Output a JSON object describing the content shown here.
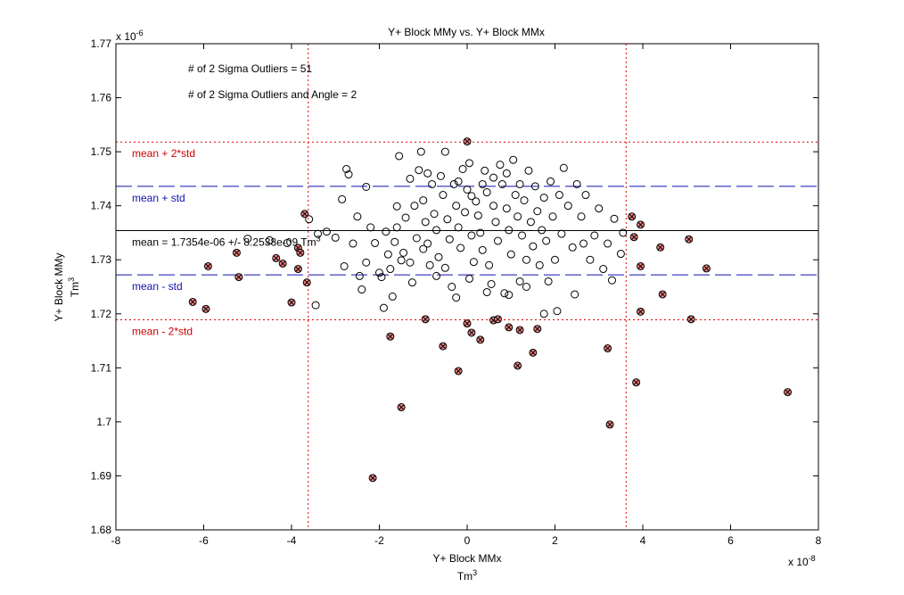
{
  "chart_data": {
    "type": "scatter",
    "title": "Y+ Block MMy vs. Y+ Block MMx",
    "xlabel": "Y+ Block MMx",
    "xlabel_unit": "Tm",
    "xlabel_unit_exp": "3",
    "ylabel": "Y+ Block MMy",
    "ylabel_unit": "Tm",
    "ylabel_unit_exp": "3",
    "xlim": [
      -8,
      8
    ],
    "ylim": [
      1.68,
      1.77
    ],
    "x_multiplier": {
      "base": "x 10",
      "exp": "-8"
    },
    "y_multiplier": {
      "base": "x 10",
      "exp": "-6"
    },
    "x_ticks": [
      -8,
      -6,
      -4,
      -2,
      0,
      2,
      4,
      6,
      8
    ],
    "x_tick_labels": [
      "-8",
      "-6",
      "-4",
      "-2",
      "0",
      "2",
      "4",
      "6",
      "8"
    ],
    "y_ticks": [
      1.68,
      1.69,
      1.7,
      1.71,
      1.72,
      1.73,
      1.74,
      1.75,
      1.76,
      1.77
    ],
    "y_tick_labels": [
      "1.68",
      "1.69",
      "1.7",
      "1.71",
      "1.72",
      "1.73",
      "1.74",
      "1.75",
      "1.76",
      "1.77"
    ],
    "annotations": [
      "# of 2 Sigma Outliers = 51",
      "# of 2 Sigma Outliers and Angle = 2"
    ],
    "reference_lines": [
      {
        "axis": "y",
        "value": 1.7518,
        "style": "dotted",
        "color": "#e00000",
        "label": "mean + 2*std",
        "label_color": "#cc0000"
      },
      {
        "axis": "y",
        "value": 1.7436,
        "style": "dashed",
        "color": "#1010b0",
        "label": "mean + std",
        "label_color": "#1010b0"
      },
      {
        "axis": "y",
        "value": 1.7354,
        "style": "solid",
        "color": "#000000",
        "label": "mean = 1.7354e-06 +/- 8.2538e-09  Tm",
        "label_exp": "3",
        "label_color": "#000000"
      },
      {
        "axis": "y",
        "value": 1.7272,
        "style": "dashed",
        "color": "#1010b0",
        "label": "mean - std",
        "label_color": "#1010b0"
      },
      {
        "axis": "y",
        "value": 1.7189,
        "style": "dotted",
        "color": "#e00000",
        "label": "mean - 2*std",
        "label_color": "#cc0000"
      },
      {
        "axis": "x",
        "value": -3.62,
        "style": "dotted",
        "color": "#e00000"
      },
      {
        "axis": "x",
        "value": 3.62,
        "style": "dotted",
        "color": "#e00000"
      }
    ],
    "outlier_points": [
      [
        -6.25,
        1.7222
      ],
      [
        -5.95,
        1.7209
      ],
      [
        -5.9,
        1.7288
      ],
      [
        -5.25,
        1.7313
      ],
      [
        -5.2,
        1.7268
      ],
      [
        -4.35,
        1.7303
      ],
      [
        -4.2,
        1.7293
      ],
      [
        -4.0,
        1.7221
      ],
      [
        -3.85,
        1.7322
      ],
      [
        -3.85,
        1.7283
      ],
      [
        -3.8,
        1.7313
      ],
      [
        -3.7,
        1.7385
      ],
      [
        -3.65,
        1.7258
      ],
      [
        -2.15,
        1.6896
      ],
      [
        -1.75,
        1.7158
      ],
      [
        -1.5,
        1.7027
      ],
      [
        -0.95,
        1.719
      ],
      [
        -0.55,
        1.714
      ],
      [
        -0.2,
        1.7094
      ],
      [
        0.0,
        1.7519
      ],
      [
        0.0,
        1.7182
      ],
      [
        0.1,
        1.7165
      ],
      [
        0.3,
        1.7152
      ],
      [
        0.6,
        1.7188
      ],
      [
        0.7,
        1.719
      ],
      [
        0.95,
        1.7175
      ],
      [
        1.15,
        1.7104
      ],
      [
        1.2,
        1.717
      ],
      [
        1.5,
        1.7128
      ],
      [
        1.6,
        1.7172
      ],
      [
        3.2,
        1.7136
      ],
      [
        3.25,
        1.6995
      ],
      [
        3.75,
        1.738
      ],
      [
        3.8,
        1.7342
      ],
      [
        3.85,
        1.7073
      ],
      [
        3.95,
        1.7365
      ],
      [
        3.95,
        1.7288
      ],
      [
        3.95,
        1.7204
      ],
      [
        4.4,
        1.7323
      ],
      [
        4.45,
        1.7236
      ],
      [
        5.05,
        1.7338
      ],
      [
        5.1,
        1.719
      ],
      [
        5.45,
        1.7284
      ],
      [
        7.3,
        1.7055
      ]
    ],
    "inlier_points": [
      [
        -5.0,
        1.7339
      ],
      [
        -4.5,
        1.7336
      ],
      [
        -4.1,
        1.7331
      ],
      [
        -3.6,
        1.7375
      ],
      [
        -3.4,
        1.7348
      ],
      [
        -3.2,
        1.7352
      ],
      [
        -3.0,
        1.7341
      ],
      [
        -3.45,
        1.7216
      ],
      [
        -2.8,
        1.7288
      ],
      [
        -2.75,
        1.7468
      ],
      [
        -2.7,
        1.7458
      ],
      [
        -2.85,
        1.7412
      ],
      [
        -2.5,
        1.738
      ],
      [
        -2.45,
        1.727
      ],
      [
        -2.4,
        1.7245
      ],
      [
        -2.3,
        1.7435
      ],
      [
        -2.2,
        1.736
      ],
      [
        -2.1,
        1.7331
      ],
      [
        -2.0,
        1.7276
      ],
      [
        -1.95,
        1.7268
      ],
      [
        -1.9,
        1.7211
      ],
      [
        -1.85,
        1.7352
      ],
      [
        -1.8,
        1.731
      ],
      [
        -1.75,
        1.7283
      ],
      [
        -1.7,
        1.7232
      ],
      [
        -1.65,
        1.7333
      ],
      [
        -1.6,
        1.7399
      ],
      [
        -1.55,
        1.7492
      ],
      [
        -1.5,
        1.7299
      ],
      [
        -1.45,
        1.7313
      ],
      [
        -1.4,
        1.7378
      ],
      [
        -1.3,
        1.7295
      ],
      [
        -1.25,
        1.7258
      ],
      [
        -1.2,
        1.74
      ],
      [
        -1.15,
        1.734
      ],
      [
        -1.1,
        1.7466
      ],
      [
        -1.05,
        1.75
      ],
      [
        -1.0,
        1.741
      ],
      [
        -0.95,
        1.737
      ],
      [
        -0.9,
        1.733
      ],
      [
        -0.85,
        1.729
      ],
      [
        -0.8,
        1.744
      ],
      [
        -0.75,
        1.7385
      ],
      [
        -0.7,
        1.7355
      ],
      [
        -0.65,
        1.7305
      ],
      [
        -0.6,
        1.7455
      ],
      [
        -0.55,
        1.742
      ],
      [
        -0.5,
        1.7285
      ],
      [
        -0.45,
        1.7375
      ],
      [
        -0.4,
        1.7338
      ],
      [
        -0.35,
        1.725
      ],
      [
        -0.3,
        1.744
      ],
      [
        -0.25,
        1.74
      ],
      [
        -0.2,
        1.736
      ],
      [
        -0.15,
        1.7322
      ],
      [
        -0.1,
        1.7468
      ],
      [
        -0.05,
        1.7388
      ],
      [
        0.0,
        1.743
      ],
      [
        0.05,
        1.7479
      ],
      [
        0.1,
        1.7345
      ],
      [
        0.15,
        1.7296
      ],
      [
        0.2,
        1.7408
      ],
      [
        0.25,
        1.7382
      ],
      [
        0.3,
        1.735
      ],
      [
        0.35,
        1.7318
      ],
      [
        0.4,
        1.7465
      ],
      [
        0.45,
        1.7425
      ],
      [
        0.5,
        1.729
      ],
      [
        0.55,
        1.7255
      ],
      [
        0.6,
        1.74
      ],
      [
        0.65,
        1.737
      ],
      [
        0.7,
        1.7335
      ],
      [
        0.75,
        1.7476
      ],
      [
        0.8,
        1.744
      ],
      [
        0.85,
        1.7238
      ],
      [
        0.9,
        1.7395
      ],
      [
        0.95,
        1.7355
      ],
      [
        1.0,
        1.731
      ],
      [
        1.05,
        1.7485
      ],
      [
        1.1,
        1.742
      ],
      [
        1.15,
        1.738
      ],
      [
        1.2,
        1.726
      ],
      [
        1.25,
        1.7345
      ],
      [
        1.3,
        1.741
      ],
      [
        1.35,
        1.73
      ],
      [
        1.4,
        1.7465
      ],
      [
        1.45,
        1.737
      ],
      [
        1.5,
        1.7325
      ],
      [
        1.55,
        1.7436
      ],
      [
        1.6,
        1.739
      ],
      [
        1.65,
        1.729
      ],
      [
        1.7,
        1.7355
      ],
      [
        1.75,
        1.7415
      ],
      [
        1.8,
        1.7335
      ],
      [
        1.85,
        1.726
      ],
      [
        1.9,
        1.7445
      ],
      [
        1.95,
        1.738
      ],
      [
        2.0,
        1.73
      ],
      [
        2.05,
        1.7205
      ],
      [
        2.1,
        1.742
      ],
      [
        2.15,
        1.7348
      ],
      [
        2.2,
        1.747
      ],
      [
        2.3,
        1.74
      ],
      [
        2.4,
        1.7323
      ],
      [
        2.45,
        1.7236
      ],
      [
        2.5,
        1.744
      ],
      [
        2.6,
        1.738
      ],
      [
        2.65,
        1.733
      ],
      [
        2.7,
        1.742
      ],
      [
        2.8,
        1.73
      ],
      [
        2.9,
        1.7345
      ],
      [
        3.0,
        1.7395
      ],
      [
        3.1,
        1.7283
      ],
      [
        3.2,
        1.733
      ],
      [
        3.3,
        1.7262
      ],
      [
        3.35,
        1.7376
      ],
      [
        3.5,
        1.7311
      ],
      [
        3.55,
        1.735
      ],
      [
        -1.6,
        1.736
      ],
      [
        -1.3,
        1.745
      ],
      [
        -0.9,
        1.746
      ],
      [
        -0.5,
        1.75
      ],
      [
        -0.2,
        1.7445
      ],
      [
        0.1,
        1.7418
      ],
      [
        0.35,
        1.744
      ],
      [
        0.6,
        1.7452
      ],
      [
        0.9,
        1.746
      ],
      [
        1.2,
        1.744
      ],
      [
        -2.6,
        1.733
      ],
      [
        -2.3,
        1.7295
      ],
      [
        -1.0,
        1.732
      ],
      [
        -0.7,
        1.727
      ],
      [
        0.05,
        1.7265
      ],
      [
        0.45,
        1.724
      ],
      [
        0.95,
        1.7235
      ],
      [
        1.35,
        1.725
      ],
      [
        1.75,
        1.72
      ],
      [
        -0.25,
        1.723
      ]
    ],
    "legend": "none",
    "grid": false
  }
}
